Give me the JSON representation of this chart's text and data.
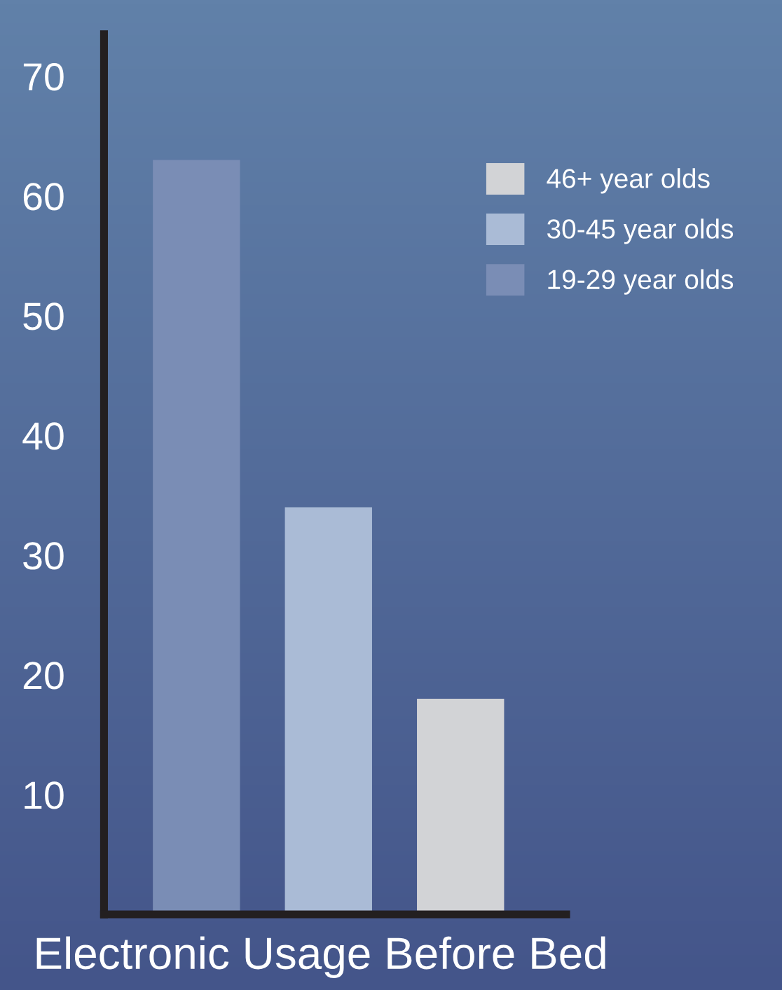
{
  "chart_data": {
    "type": "bar",
    "title": "Electronic Usage Before Bed",
    "categories": [
      null,
      null,
      null
    ],
    "series": [
      {
        "name": "46+ year olds",
        "color": "#d2d3d6",
        "values": [
          null,
          null,
          18
        ]
      },
      {
        "name": "30-45 year olds",
        "color": "#aabbd6",
        "values": [
          null,
          34,
          null
        ]
      },
      {
        "name": "19-29 year olds",
        "color": "#7a8db5",
        "values": [
          63,
          null,
          null
        ]
      }
    ],
    "ylim": [
      0,
      73.5
    ],
    "yticks": [
      10,
      20,
      30,
      40,
      50,
      60,
      70
    ],
    "grid": false,
    "legend": "top right",
    "tick_labels": "y"
  }
}
